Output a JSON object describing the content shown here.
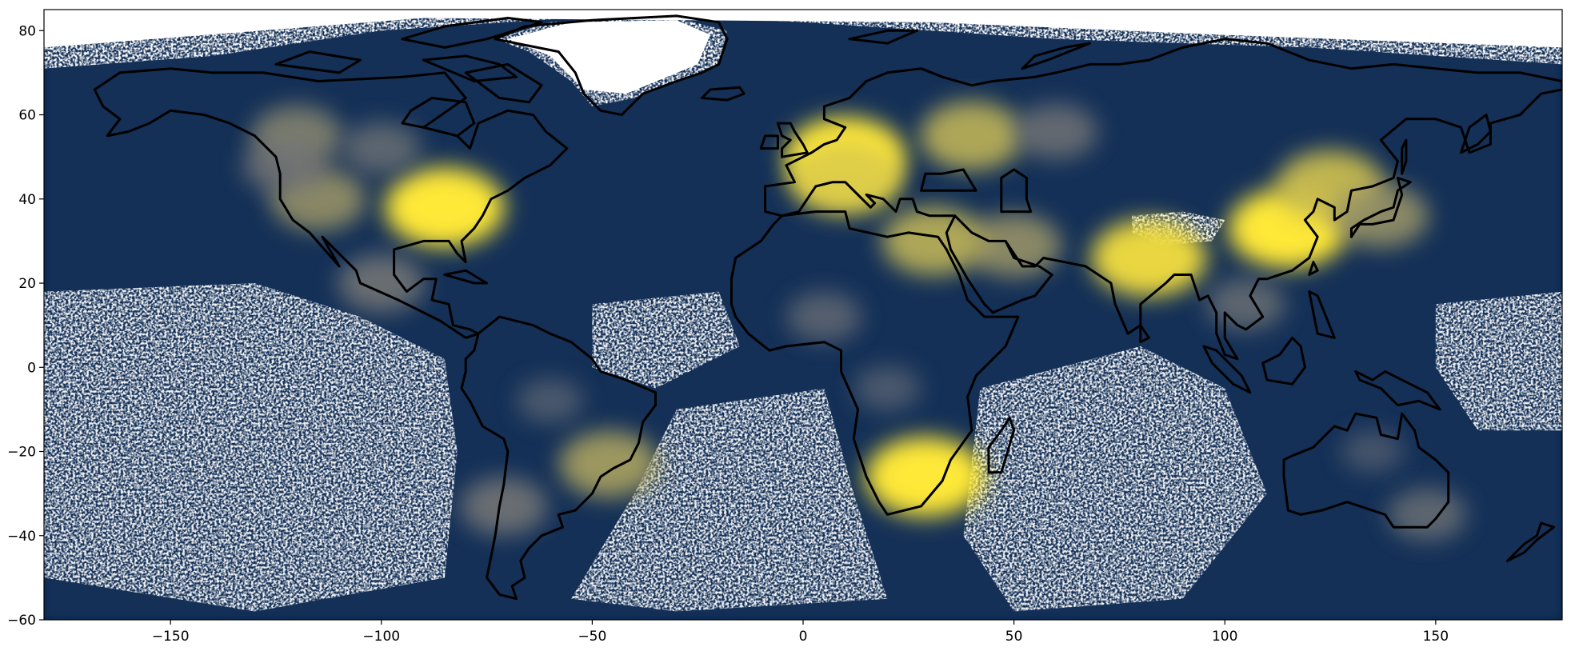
{
  "chart_data": {
    "type": "heatmap",
    "projection": "plate-carree",
    "title": "",
    "xlabel": "",
    "ylabel": "",
    "xlim": [
      -180,
      180
    ],
    "ylim": [
      -60,
      85
    ],
    "x_ticks": [
      -150,
      -100,
      -50,
      0,
      50,
      100,
      150
    ],
    "y_ticks": [
      -60,
      -40,
      -20,
      0,
      20,
      40,
      60,
      80
    ],
    "x_tick_labels": [
      "−150",
      "−100",
      "−50",
      "0",
      "50",
      "100",
      "150"
    ],
    "y_tick_labels": [
      "−60",
      "−40",
      "−20",
      "0",
      "20",
      "40",
      "60",
      "80"
    ],
    "colormap": "cividis",
    "colors": {
      "low": "#00204c",
      "mid": "#7c7b78",
      "high": "#fee838",
      "missing": "#ffffff",
      "coastline": "#000000"
    },
    "grid": false,
    "legend": "none",
    "hotspots": [
      {
        "region": "Eastern United States",
        "lon": -85,
        "lat": 38,
        "level": 1.0
      },
      {
        "region": "Western United States",
        "lon": -115,
        "lat": 40,
        "level": 0.7
      },
      {
        "region": "Western Canada",
        "lon": -120,
        "lat": 55,
        "level": 0.65
      },
      {
        "region": "Northwest Pacific coast",
        "lon": -123,
        "lat": 48,
        "level": 0.55
      },
      {
        "region": "Southern Canada",
        "lon": -100,
        "lat": 52,
        "level": 0.5
      },
      {
        "region": "Mexico",
        "lon": -100,
        "lat": 20,
        "level": 0.6
      },
      {
        "region": "Europe",
        "lon": 10,
        "lat": 50,
        "level": 1.0
      },
      {
        "region": "Po Valley",
        "lon": 10,
        "lat": 45,
        "level": 0.9
      },
      {
        "region": "Western Russia",
        "lon": 40,
        "lat": 55,
        "level": 0.8
      },
      {
        "region": "Central Russia",
        "lon": 60,
        "lat": 56,
        "level": 0.55
      },
      {
        "region": "Eastern China",
        "lon": 115,
        "lat": 33,
        "level": 1.0
      },
      {
        "region": "Northeast China",
        "lon": 125,
        "lat": 43,
        "level": 0.85
      },
      {
        "region": "Japan",
        "lon": 137,
        "lat": 36,
        "level": 0.7
      },
      {
        "region": "India Ganges plain",
        "lon": 82,
        "lat": 26,
        "level": 0.95
      },
      {
        "region": "Persian Gulf",
        "lon": 50,
        "lat": 29,
        "level": 0.7
      },
      {
        "region": "Nile Delta",
        "lon": 31,
        "lat": 30,
        "level": 0.8
      },
      {
        "region": "Highveld South Africa",
        "lon": 29,
        "lat": -26,
        "level": 1.0
      },
      {
        "region": "Sahel",
        "lon": 5,
        "lat": 12,
        "level": 0.45
      },
      {
        "region": "Southeast Brazil",
        "lon": -46,
        "lat": -23,
        "level": 0.75
      },
      {
        "region": "Amazon",
        "lon": -60,
        "lat": -8,
        "level": 0.35
      },
      {
        "region": "Chile",
        "lon": -71,
        "lat": -33,
        "level": 0.6
      },
      {
        "region": "Southeast Australia",
        "lon": 148,
        "lat": -35,
        "level": 0.5
      },
      {
        "region": "Northern Australia",
        "lon": 135,
        "lat": -20,
        "level": 0.3
      },
      {
        "region": "Southeast Asia",
        "lon": 105,
        "lat": 15,
        "level": 0.5
      },
      {
        "region": "Central Africa",
        "lon": 20,
        "lat": -5,
        "level": 0.35
      }
    ],
    "missing_data_regions": [
      "Greenland",
      "Arctic Ocean",
      "Tropical Pacific",
      "Southern Indian Ocean",
      "South Atlantic",
      "Tibetan Plateau"
    ]
  }
}
